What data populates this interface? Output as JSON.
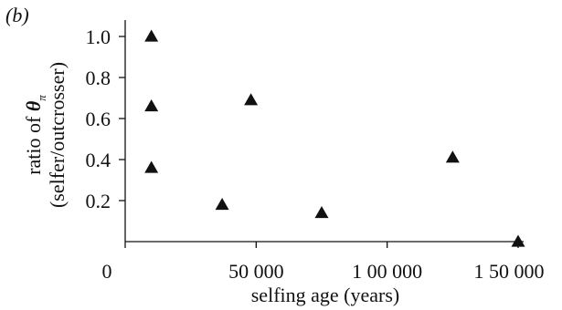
{
  "panel_label": "(b)",
  "chart_data": {
    "type": "scatter",
    "title": "",
    "xlabel": "selfing age (years)",
    "ylabel_line1_prefix": "ratio of ",
    "ylabel_line1_symbol": "θ",
    "ylabel_line1_subscript": "π",
    "ylabel_line2": "(selfer/outcrosser)",
    "xlim": [
      0,
      150000
    ],
    "ylim": [
      0,
      1.05
    ],
    "x_ticks": [
      0,
      50000,
      100000,
      150000
    ],
    "x_tick_labels": [
      "0",
      "50 000",
      "1 00 000",
      "1 50 000"
    ],
    "y_ticks": [
      0.2,
      0.4,
      0.6,
      0.8,
      1.0
    ],
    "y_tick_labels": [
      "0.2",
      "0.4",
      "0.6",
      "0.8",
      "1.0"
    ],
    "marker": "triangle",
    "grid": false,
    "points": [
      {
        "x": 10000,
        "y": 1.0
      },
      {
        "x": 10000,
        "y": 0.66
      },
      {
        "x": 10000,
        "y": 0.36
      },
      {
        "x": 37000,
        "y": 0.18
      },
      {
        "x": 48000,
        "y": 0.69
      },
      {
        "x": 75000,
        "y": 0.14
      },
      {
        "x": 125000,
        "y": 0.41
      },
      {
        "x": 150000,
        "y": 0.0
      }
    ]
  }
}
